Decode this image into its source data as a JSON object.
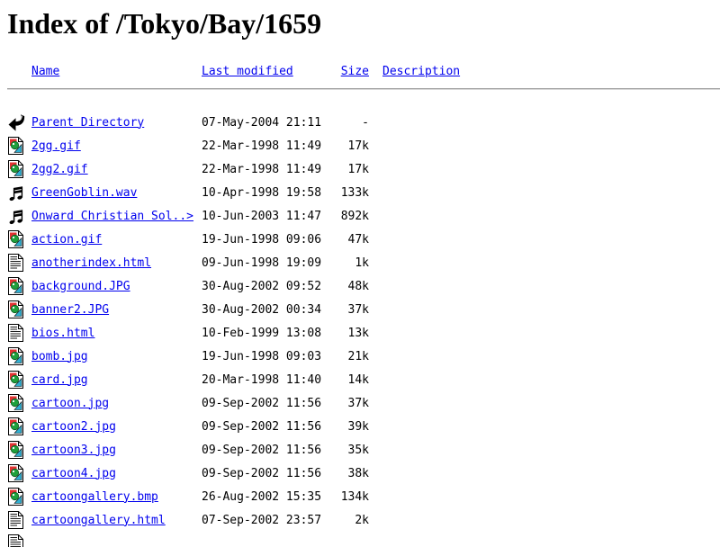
{
  "page": {
    "title": "Index of /Tokyo/Bay/1659"
  },
  "colors": {
    "link": "#0000ee",
    "text": "#000000",
    "background": "#ffffff",
    "rule_gray": "#9e9e9e",
    "icon_red": "#e13232",
    "icon_green": "#1fa03c",
    "icon_cyan": "#2fb0d2"
  },
  "header": {
    "name": "Name",
    "last_modified": "Last modified",
    "size": "Size",
    "description": "Description"
  },
  "listing": {
    "rows": [
      {
        "icon": "back-icon",
        "name": "Parent Directory",
        "date": "07-May-2004 21:11",
        "size": "-",
        "description": ""
      },
      {
        "icon": "image-icon",
        "name": "2gg.gif",
        "date": "22-Mar-1998 11:49",
        "size": "17k",
        "description": ""
      },
      {
        "icon": "image-icon",
        "name": "2gg2.gif",
        "date": "22-Mar-1998 11:49",
        "size": "17k",
        "description": ""
      },
      {
        "icon": "sound-icon",
        "name": "GreenGoblin.wav",
        "date": "10-Apr-1998 19:58",
        "size": "133k",
        "description": ""
      },
      {
        "icon": "sound-icon",
        "name": "Onward Christian Sol..>",
        "date": "10-Jun-2003 11:47",
        "size": "892k",
        "description": ""
      },
      {
        "icon": "image-icon",
        "name": "action.gif",
        "date": "19-Jun-1998 09:06",
        "size": "47k",
        "description": ""
      },
      {
        "icon": "text-icon",
        "name": "anotherindex.html",
        "date": "09-Jun-1998 19:09",
        "size": "1k",
        "description": ""
      },
      {
        "icon": "image-icon",
        "name": "background.JPG",
        "date": "30-Aug-2002 09:52",
        "size": "48k",
        "description": ""
      },
      {
        "icon": "image-icon",
        "name": "banner2.JPG",
        "date": "30-Aug-2002 00:34",
        "size": "37k",
        "description": ""
      },
      {
        "icon": "text-icon",
        "name": "bios.html",
        "date": "10-Feb-1999 13:08",
        "size": "13k",
        "description": ""
      },
      {
        "icon": "image-icon",
        "name": "bomb.jpg",
        "date": "19-Jun-1998 09:03",
        "size": "21k",
        "description": ""
      },
      {
        "icon": "image-icon",
        "name": "card.jpg",
        "date": "20-Mar-1998 11:40",
        "size": "14k",
        "description": ""
      },
      {
        "icon": "image-icon",
        "name": "cartoon.jpg",
        "date": "09-Sep-2002 11:56",
        "size": "37k",
        "description": ""
      },
      {
        "icon": "image-icon",
        "name": "cartoon2.jpg",
        "date": "09-Sep-2002 11:56",
        "size": "39k",
        "description": ""
      },
      {
        "icon": "image-icon",
        "name": "cartoon3.jpg",
        "date": "09-Sep-2002 11:56",
        "size": "35k",
        "description": ""
      },
      {
        "icon": "image-icon",
        "name": "cartoon4.jpg",
        "date": "09-Sep-2002 11:56",
        "size": "38k",
        "description": ""
      },
      {
        "icon": "image-icon",
        "name": "cartoongallery.bmp",
        "date": "26-Aug-2002 15:35",
        "size": "134k",
        "description": ""
      },
      {
        "icon": "text-icon",
        "name": "cartoongallery.html",
        "date": "07-Sep-2002 23:57",
        "size": "2k",
        "description": ""
      },
      {
        "icon": "text-icon",
        "name": "",
        "date": "",
        "size": "",
        "description": ""
      }
    ]
  }
}
